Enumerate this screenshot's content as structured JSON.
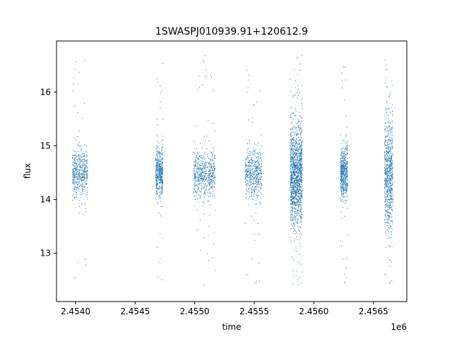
{
  "chart_data": {
    "type": "scatter",
    "title": "1SWASPJ010939.91+120612.9",
    "xlabel": "time",
    "ylabel": "flux",
    "x_offset_label": "1e6",
    "xlim": [
      2453840,
      2456780
    ],
    "ylim": [
      12.1,
      16.95
    ],
    "x_ticks": [
      2454000,
      2454500,
      2455000,
      2455500,
      2456000,
      2456500
    ],
    "x_tick_labels": [
      "2.4540",
      "2.4545",
      "2.4550",
      "2.4555",
      "2.4560",
      "2.4565"
    ],
    "y_ticks": [
      13,
      14,
      15,
      16
    ],
    "y_tick_labels": [
      "13",
      "14",
      "15",
      "16"
    ],
    "grid": false,
    "marker_color": "#1f77b4",
    "segments": [
      {
        "t_start": 2453970,
        "t_end": 2454100,
        "center": 14.5,
        "spread": 0.22,
        "n": 520,
        "outlier_low": 12.4,
        "outlier_high": 16.7
      },
      {
        "t_start": 2454670,
        "t_end": 2454730,
        "center": 14.5,
        "spread": 0.22,
        "n": 520,
        "outlier_low": 12.5,
        "outlier_high": 16.6
      },
      {
        "t_start": 2454990,
        "t_end": 2455170,
        "center": 14.45,
        "spread": 0.22,
        "n": 620,
        "outlier_low": 12.4,
        "outlier_high": 16.7
      },
      {
        "t_start": 2455420,
        "t_end": 2455560,
        "center": 14.5,
        "spread": 0.22,
        "n": 520,
        "outlier_low": 12.4,
        "outlier_high": 16.5
      },
      {
        "t_start": 2455800,
        "t_end": 2455900,
        "center": 14.45,
        "spread": 0.45,
        "n": 1500,
        "outlier_low": 12.35,
        "outlier_high": 16.7
      },
      {
        "t_start": 2456220,
        "t_end": 2456280,
        "center": 14.5,
        "spread": 0.25,
        "n": 600,
        "outlier_low": 12.4,
        "outlier_high": 16.6
      },
      {
        "t_start": 2456590,
        "t_end": 2456660,
        "center": 14.45,
        "spread": 0.5,
        "n": 800,
        "outlier_low": 12.4,
        "outlier_high": 16.7
      }
    ]
  }
}
